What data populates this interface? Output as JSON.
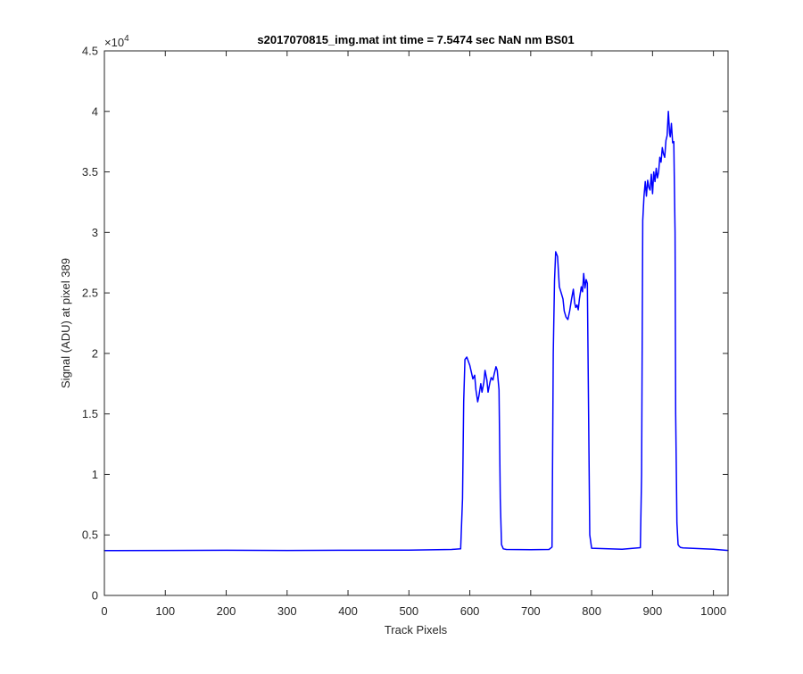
{
  "chart_data": {
    "type": "line",
    "title": "s2017070815_img.mat int time = 7.5474 sec  NaN nm BS01",
    "xlabel": "Track Pixels",
    "ylabel": "Signal (ADU) at pixel 389",
    "xlim": [
      0,
      1024
    ],
    "ylim": [
      0,
      45000
    ],
    "x_ticks": [
      0,
      100,
      200,
      300,
      400,
      500,
      600,
      700,
      800,
      900,
      1000
    ],
    "y_ticks": [
      0,
      5000,
      10000,
      15000,
      20000,
      25000,
      30000,
      35000,
      40000,
      45000
    ],
    "y_tick_labels": [
      "0",
      "0.5",
      "1",
      "1.5",
      "2",
      "2.5",
      "3",
      "3.5",
      "4",
      "4.5"
    ],
    "y_exponent": {
      "base": "×10",
      "power": "4"
    },
    "grid": false,
    "line_color": "#0000ff",
    "series": [
      {
        "x": [
          0,
          100,
          200,
          300,
          400,
          500,
          570,
          585,
          588,
          590,
          592,
          595,
          600,
          605,
          608,
          610,
          613,
          615,
          618,
          620,
          623,
          625,
          628,
          630,
          633,
          635,
          638,
          640,
          643,
          645,
          648,
          650,
          652,
          655,
          660,
          700,
          730,
          735,
          737,
          739,
          741,
          744,
          747,
          750,
          753,
          755,
          758,
          761,
          764,
          767,
          770,
          772,
          774,
          776,
          778,
          780,
          783,
          785,
          787,
          789,
          791,
          793,
          795,
          797,
          800,
          850,
          880,
          882,
          884,
          886,
          888,
          890,
          892,
          894,
          896,
          898,
          900,
          902,
          904,
          906,
          908,
          910,
          912,
          914,
          916,
          918,
          920,
          922,
          924,
          926,
          928,
          929,
          931,
          933,
          935,
          937,
          938,
          940,
          942,
          944,
          946,
          950,
          1000,
          1024
        ],
        "y": [
          3700,
          3720,
          3730,
          3720,
          3730,
          3750,
          3800,
          3850,
          8000,
          16000,
          19500,
          19700,
          19000,
          17900,
          18200,
          17000,
          16000,
          16500,
          17500,
          16800,
          17600,
          18600,
          17800,
          16800,
          17600,
          18000,
          17800,
          18300,
          18900,
          18600,
          17000,
          8000,
          4200,
          3850,
          3800,
          3780,
          3800,
          4000,
          20000,
          26000,
          28400,
          28000,
          25500,
          25000,
          24500,
          23500,
          23000,
          22800,
          23500,
          24500,
          25300,
          24200,
          23800,
          24000,
          23600,
          24500,
          25500,
          25100,
          26600,
          25400,
          26100,
          25800,
          15000,
          5000,
          3900,
          3820,
          3950,
          10000,
          31000,
          33000,
          34200,
          33000,
          34300,
          33700,
          33500,
          34800,
          33200,
          35000,
          34200,
          35300,
          34500,
          35000,
          36200,
          35800,
          37000,
          36500,
          36200,
          37600,
          38000,
          40000,
          38200,
          37900,
          39000,
          37400,
          37500,
          30000,
          15000,
          6000,
          4200,
          4050,
          3960,
          3930,
          3820,
          3720
        ]
      }
    ]
  }
}
